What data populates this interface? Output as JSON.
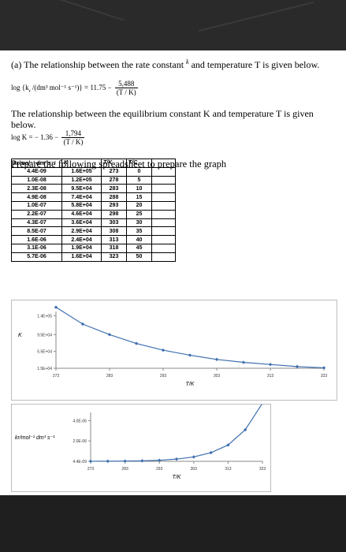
{
  "header": {
    "part_a_line": "(a) The relationship between the rate constant",
    "k_symbol": "k",
    "part_a_rest": "and temperature T is given below.",
    "eq1_lhs": "log {k",
    "eq1_units": "/(dm³ mol⁻¹ s⁻¹)} = 11.75 −",
    "eq1_num": "5,488",
    "eq1_den": "(T / K)",
    "equilibrium_line": "The relationship between the equilibrium constant K and temperature T is given below.",
    "eq2_lhs": "log K = − 1.36 −",
    "eq2_num": "1,794",
    "eq2_den": "(T / K)",
    "instruction": "Prepare the following spreadsheet to prepare the graph"
  },
  "table": {
    "headers": [
      "kr/mol⁻¹ dm³ s⁻¹",
      "K",
      "T/K",
      "T/C",
      ""
    ],
    "rows": [
      [
        "4.4E-09",
        "1.6E+05",
        "273",
        "0",
        ""
      ],
      [
        "1.0E-08",
        "1.2E+05",
        "278",
        "5",
        ""
      ],
      [
        "2.3E-08",
        "9.5E+04",
        "283",
        "10",
        ""
      ],
      [
        "4.9E-08",
        "7.4E+04",
        "288",
        "15",
        ""
      ],
      [
        "1.0E-07",
        "5.8E+04",
        "293",
        "20",
        ""
      ],
      [
        "2.2E-07",
        "4.6E+04",
        "298",
        "25",
        ""
      ],
      [
        "4.3E-07",
        "3.6E+04",
        "303",
        "30",
        ""
      ],
      [
        "8.5E-07",
        "2.9E+04",
        "308",
        "35",
        ""
      ],
      [
        "1.6E-06",
        "2.4E+04",
        "313",
        "40",
        ""
      ],
      [
        "3.1E-06",
        "1.9E+04",
        "318",
        "45",
        ""
      ],
      [
        "5.7E-06",
        "1.6E+04",
        "323",
        "50",
        ""
      ]
    ]
  },
  "chart_data": [
    {
      "type": "line",
      "ylabel": "K",
      "xlabel": "T/K",
      "x": [
        273,
        278,
        283,
        288,
        293,
        298,
        303,
        308,
        313,
        318,
        323
      ],
      "series": [
        {
          "values": [
            160000,
            120000,
            95000,
            74000,
            58000,
            46000,
            36000,
            29000,
            24000,
            19000,
            16000
          ]
        }
      ],
      "xticks": [
        273,
        283,
        293,
        303,
        313,
        323
      ],
      "yticks": [
        15000,
        55000,
        95000,
        140000
      ],
      "ytick_labels": [
        "1.5E+04",
        "5.5E+04",
        "9.5E+04",
        "1.4E+05"
      ],
      "xlim": [
        273,
        323
      ],
      "ylim": [
        15000,
        150000
      ],
      "color": "#3f6fb0",
      "grid": false
    },
    {
      "type": "line",
      "ylabel": "kr/mol⁻¹ dm³ s⁻¹",
      "xlabel": "T/K",
      "x": [
        273,
        278,
        283,
        288,
        293,
        298,
        303,
        308,
        313,
        318,
        323
      ],
      "series": [
        {
          "values": [
            4.4e-09,
            1e-08,
            2.3e-08,
            4.9e-08,
            1e-07,
            2.2e-07,
            4.3e-07,
            8.5e-07,
            1.6e-06,
            3.1e-06,
            5.7e-06
          ]
        }
      ],
      "xticks": [
        273,
        283,
        293,
        303,
        313,
        323
      ],
      "yticks": [
        4.4e-09,
        2e-06,
        4e-06
      ],
      "ytick_labels": [
        "4.4E-09",
        "2.0E-06",
        "4.0E-06"
      ],
      "xlim": [
        273,
        323
      ],
      "ylim": [
        0,
        4.8e-06
      ],
      "color": "#3f6fb0",
      "grid": false
    }
  ]
}
